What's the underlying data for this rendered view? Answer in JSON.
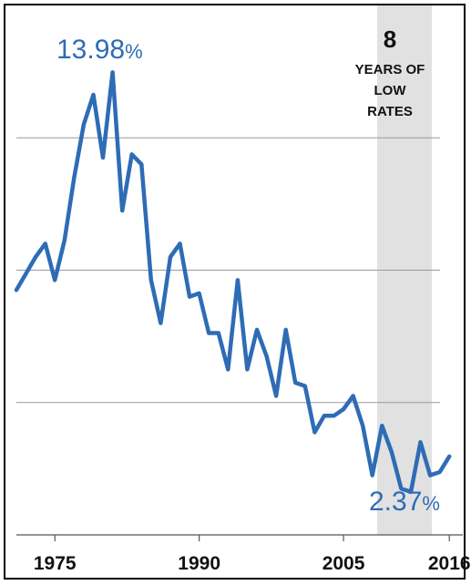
{
  "chart_data": {
    "type": "line",
    "x": [
      1971,
      1972,
      1973,
      1974,
      1975,
      1976,
      1977,
      1978,
      1979,
      1980,
      1981,
      1982,
      1983,
      1984,
      1985,
      1986,
      1987,
      1988,
      1989,
      1990,
      1991,
      1992,
      1993,
      1994,
      1995,
      1996,
      1997,
      1998,
      1999,
      2000,
      2001,
      2002,
      2003,
      2004,
      2005,
      2006,
      2007,
      2008,
      2009,
      2010,
      2011,
      2012,
      2013,
      2014,
      2015,
      2016
    ],
    "series": [
      {
        "name": "",
        "values": [
          7.4,
          7.9,
          8.4,
          8.8,
          7.7,
          8.9,
          10.8,
          12.4,
          13.3,
          11.4,
          13.98,
          9.8,
          11.5,
          11.2,
          7.7,
          6.4,
          8.4,
          8.8,
          7.2,
          7.3,
          6.1,
          6.1,
          5.0,
          7.7,
          5.0,
          6.2,
          5.4,
          4.2,
          6.2,
          4.6,
          4.5,
          3.1,
          3.6,
          3.6,
          3.8,
          4.2,
          3.3,
          1.8,
          3.3,
          2.5,
          1.4,
          1.3,
          2.8,
          1.8,
          1.9,
          2.37
        ]
      }
    ],
    "xticks": [
      "1975",
      "1990",
      "2005",
      "2016"
    ],
    "ylim": [
      0,
      16
    ],
    "grid": "horizontal",
    "shaded_region": {
      "from": 2008.5,
      "to": 2016
    },
    "color": "#2e6cb5",
    "annotations": {
      "peak": {
        "value": "13.98",
        "unit": "%"
      },
      "last": {
        "value": "2.37",
        "unit": "%"
      },
      "period_number": "8",
      "period_line1": "YEARS OF",
      "period_line2": "LOW",
      "period_line3": "RATES"
    }
  }
}
